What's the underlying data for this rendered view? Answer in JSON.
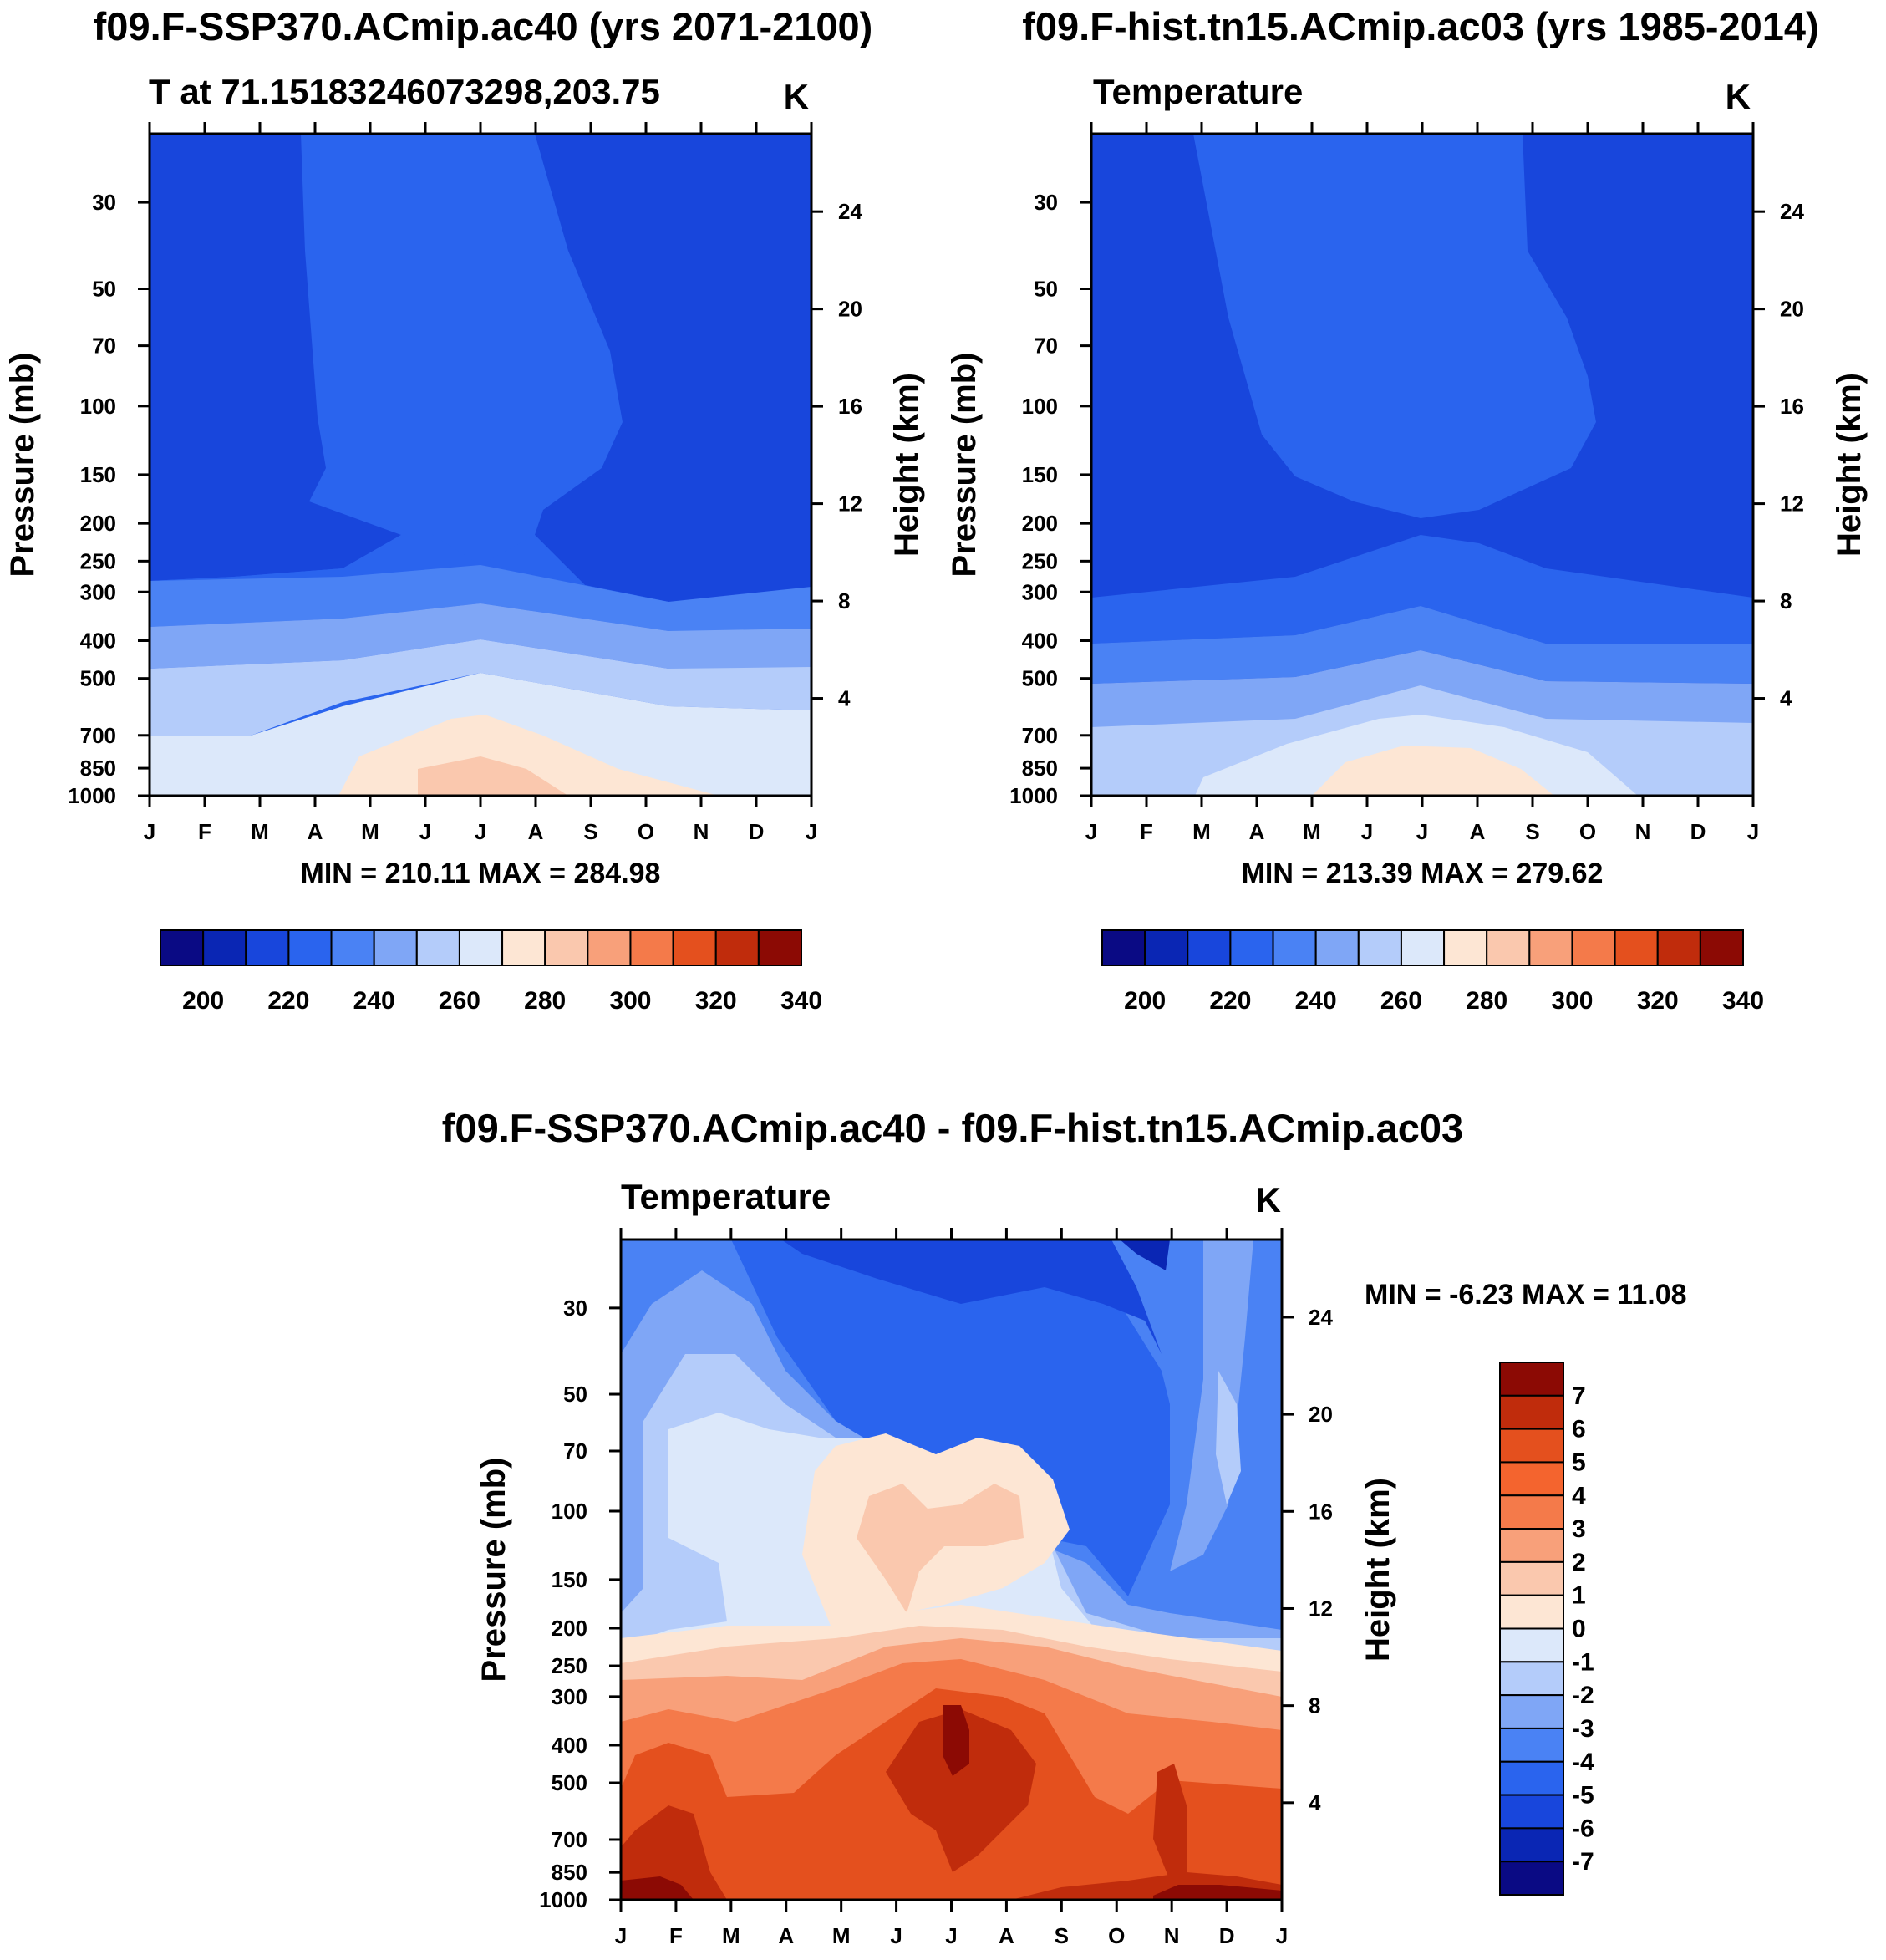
{
  "colors": {
    "abs_scale": [
      "#0a0a84",
      "#0a26b4",
      "#1846dc",
      "#2a64ee",
      "#4a82f4",
      "#7fa6f6",
      "#b4ccfa",
      "#dce8fa",
      "#fde6d4",
      "#fac8ae",
      "#f8a07a",
      "#f47a4a",
      "#e4501e",
      "#c02c0c",
      "#8c0a04"
    ],
    "diff_scale": [
      "#0a0a84",
      "#0a26b4",
      "#1846dc",
      "#2a64ee",
      "#4a82f4",
      "#7fa6f6",
      "#b4ccfa",
      "#dce8fa",
      "#fde6d4",
      "#fac8ae",
      "#f8a07a",
      "#f47a4a",
      "#e4501e",
      "#c02c0c",
      "#8c0a04"
    ]
  },
  "chart_data": [
    {
      "type": "heatmap",
      "title": "f09.F-SSP370.ACmip.ac40 (yrs 2071-2100)",
      "left_label": "T at 71.15183246073298,203.75",
      "right_label": "K",
      "xlabel": "",
      "ylabel": "Pressure (mb)",
      "y2label": "Height (km)",
      "x_ticks": [
        "J",
        "F",
        "M",
        "A",
        "M",
        "J",
        "J",
        "A",
        "S",
        "O",
        "N",
        "D",
        "J"
      ],
      "y_ticks": [
        30,
        50,
        70,
        100,
        150,
        200,
        250,
        300,
        400,
        500,
        700,
        850,
        1000
      ],
      "y2_ticks": [
        24,
        20,
        16,
        12,
        8,
        4
      ],
      "ylim": [
        1000,
        20
      ],
      "minmax_text": "MIN = 210.11 MAX = 284.98",
      "min": 210.11,
      "max": 284.98,
      "colorbar": {
        "labels": [
          "200",
          "220",
          "240",
          "260",
          "280",
          "300",
          "320",
          "340"
        ],
        "n_boxes": 15
      }
    },
    {
      "type": "heatmap",
      "title": "f09.F-hist.tn15.ACmip.ac03 (yrs 1985-2014)",
      "left_label": "Temperature",
      "right_label": "K",
      "xlabel": "",
      "ylabel": "Pressure (mb)",
      "y2label": "Height (km)",
      "x_ticks": [
        "J",
        "F",
        "M",
        "A",
        "M",
        "J",
        "J",
        "A",
        "S",
        "O",
        "N",
        "D",
        "J"
      ],
      "y_ticks": [
        30,
        50,
        70,
        100,
        150,
        200,
        250,
        300,
        400,
        500,
        700,
        850,
        1000
      ],
      "y2_ticks": [
        24,
        20,
        16,
        12,
        8,
        4
      ],
      "ylim": [
        1000,
        20
      ],
      "minmax_text": "MIN = 213.39 MAX = 279.62",
      "min": 213.39,
      "max": 279.62,
      "colorbar": {
        "labels": [
          "200",
          "220",
          "240",
          "260",
          "280",
          "300",
          "320",
          "340"
        ],
        "n_boxes": 15
      }
    },
    {
      "type": "heatmap",
      "title": "f09.F-SSP370.ACmip.ac40 - f09.F-hist.tn15.ACmip.ac03",
      "left_label": "Temperature",
      "right_label": "K",
      "xlabel": "",
      "ylabel": "Pressure (mb)",
      "y2label": "Height (km)",
      "x_ticks": [
        "J",
        "F",
        "M",
        "A",
        "M",
        "J",
        "J",
        "A",
        "S",
        "O",
        "N",
        "D",
        "J"
      ],
      "y_ticks": [
        30,
        50,
        70,
        100,
        150,
        200,
        250,
        300,
        400,
        500,
        700,
        850,
        1000
      ],
      "y2_ticks": [
        24,
        20,
        16,
        12,
        8,
        4
      ],
      "ylim": [
        1000,
        20
      ],
      "minmax_text": "MIN =  -6.23 MAX =  11.08",
      "min": -6.23,
      "max": 11.08,
      "colorbar": {
        "labels": [
          "7",
          "6",
          "5",
          "4",
          "3",
          "2",
          "1",
          "0",
          "-1",
          "-2",
          "-3",
          "-4",
          "-5",
          "-6",
          "-7"
        ],
        "n_boxes": 16
      }
    }
  ]
}
